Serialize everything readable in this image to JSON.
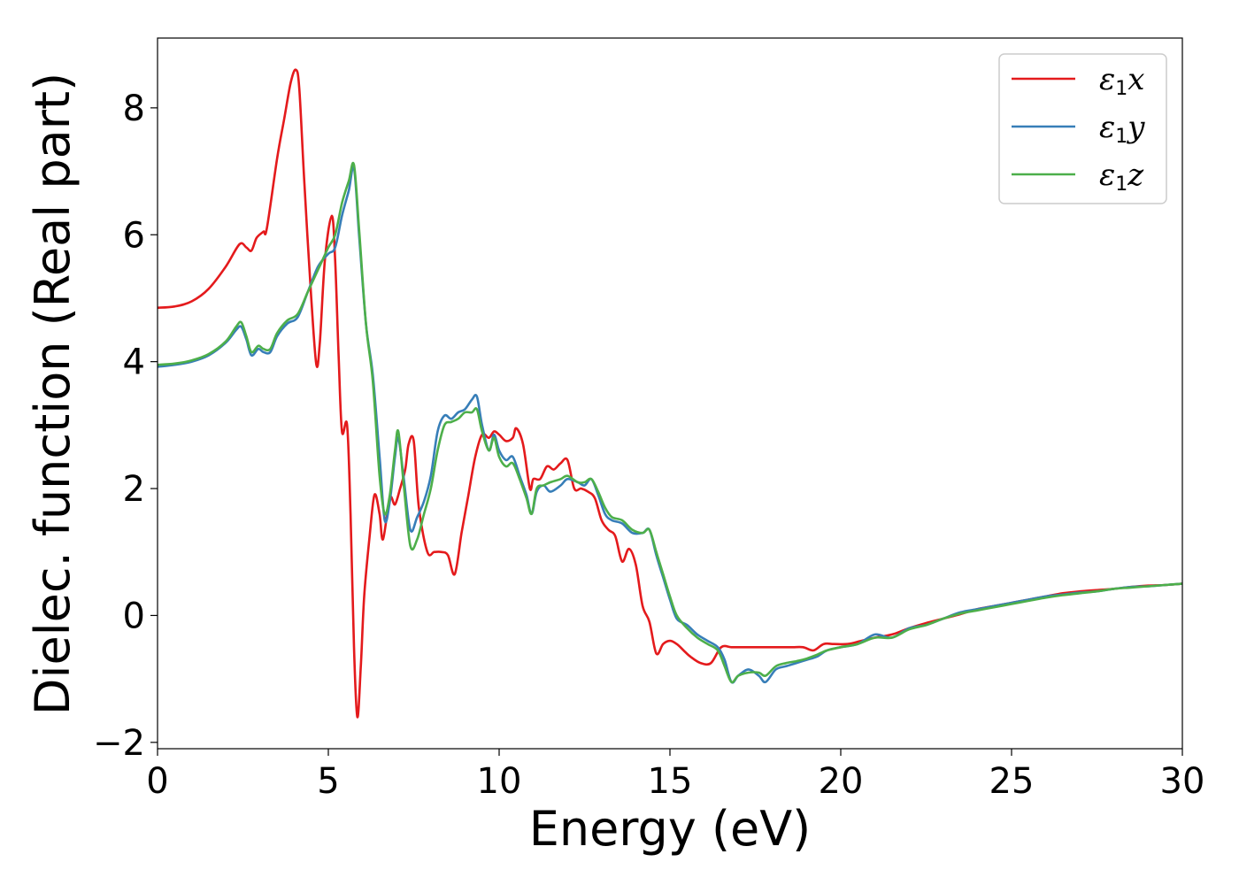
{
  "chart_data": {
    "type": "line",
    "xlabel": "Energy (eV)",
    "ylabel": "Dielec. function (Real part)",
    "xlim": [
      0,
      30
    ],
    "ylim": [
      -2.1,
      9.1
    ],
    "xticks": [
      0,
      5,
      10,
      15,
      20,
      25,
      30
    ],
    "xtick_labels": [
      "0",
      "5",
      "10",
      "15",
      "20",
      "25",
      "30"
    ],
    "yticks": [
      -2,
      0,
      2,
      4,
      6,
      8
    ],
    "ytick_labels": [
      "−2",
      "0",
      "2",
      "4",
      "6",
      "8"
    ],
    "grid": false,
    "legend_position": "top-right",
    "series": [
      {
        "legend": {
          "base": "ε",
          "sub": "1",
          "suffix": "x"
        },
        "color": "#e41a1c",
        "x": [
          0,
          0.5,
          1.0,
          1.5,
          2.0,
          2.4,
          2.6,
          2.75,
          2.9,
          3.1,
          3.2,
          3.5,
          3.7,
          3.9,
          4.05,
          4.15,
          4.3,
          4.5,
          4.65,
          4.75,
          4.9,
          5.1,
          5.2,
          5.3,
          5.4,
          5.55,
          5.65,
          5.75,
          5.85,
          5.95,
          6.05,
          6.2,
          6.35,
          6.5,
          6.6,
          6.8,
          6.95,
          7.1,
          7.25,
          7.35,
          7.5,
          7.65,
          7.9,
          8.1,
          8.3,
          8.5,
          8.7,
          8.9,
          9.1,
          9.3,
          9.5,
          9.7,
          9.85,
          10.0,
          10.2,
          10.4,
          10.5,
          10.7,
          10.9,
          11.0,
          11.2,
          11.4,
          11.6,
          11.8,
          12.0,
          12.2,
          12.4,
          12.6,
          12.8,
          13.0,
          13.2,
          13.4,
          13.6,
          13.8,
          14.0,
          14.2,
          14.4,
          14.6,
          14.8,
          15.0,
          15.2,
          15.4,
          15.6,
          15.9,
          16.2,
          16.5,
          16.8,
          17.1,
          17.4,
          17.7,
          18.0,
          18.3,
          18.6,
          18.9,
          19.2,
          19.5,
          19.8,
          20.2,
          20.6,
          21.0,
          21.5,
          22.0,
          22.5,
          23.0,
          23.5,
          24.0,
          24.5,
          25.0,
          25.5,
          26.0,
          26.5,
          27.0,
          27.5,
          28.0,
          28.5,
          29.0,
          29.5,
          30.0
        ],
        "y": [
          4.85,
          4.87,
          4.95,
          5.15,
          5.5,
          5.85,
          5.8,
          5.75,
          5.95,
          6.05,
          6.1,
          7.2,
          7.8,
          8.4,
          8.6,
          8.3,
          6.8,
          5.0,
          3.95,
          4.3,
          5.6,
          6.3,
          5.6,
          4.1,
          2.9,
          3.0,
          1.6,
          -0.5,
          -1.6,
          -0.8,
          0.3,
          1.2,
          1.9,
          1.6,
          1.2,
          1.85,
          1.75,
          2.0,
          2.3,
          2.7,
          2.75,
          1.7,
          1.0,
          1.0,
          1.0,
          0.95,
          0.65,
          1.3,
          1.9,
          2.5,
          2.85,
          2.8,
          2.9,
          2.85,
          2.75,
          2.8,
          2.95,
          2.7,
          2.0,
          2.15,
          2.15,
          2.35,
          2.3,
          2.4,
          2.45,
          2.0,
          2.0,
          1.95,
          1.85,
          1.5,
          1.35,
          1.25,
          0.85,
          1.05,
          0.8,
          0.15,
          -0.1,
          -0.6,
          -0.45,
          -0.4,
          -0.45,
          -0.55,
          -0.65,
          -0.75,
          -0.75,
          -0.5,
          -0.5,
          -0.5,
          -0.5,
          -0.5,
          -0.5,
          -0.5,
          -0.5,
          -0.5,
          -0.55,
          -0.45,
          -0.45,
          -0.45,
          -0.4,
          -0.35,
          -0.3,
          -0.2,
          -0.12,
          -0.05,
          0.02,
          0.1,
          0.15,
          0.2,
          0.25,
          0.3,
          0.35,
          0.38,
          0.4,
          0.42,
          0.45,
          0.47,
          0.48,
          0.5
        ]
      },
      {
        "legend": {
          "base": "ε",
          "sub": "1",
          "suffix": "y"
        },
        "color": "#377eb8",
        "x": [
          0,
          0.5,
          1.0,
          1.5,
          2.0,
          2.3,
          2.45,
          2.6,
          2.75,
          2.95,
          3.1,
          3.3,
          3.5,
          3.8,
          4.1,
          4.4,
          4.7,
          5.0,
          5.2,
          5.4,
          5.6,
          5.75,
          5.9,
          6.1,
          6.3,
          6.5,
          6.65,
          6.8,
          6.95,
          7.05,
          7.2,
          7.4,
          7.6,
          7.8,
          8.0,
          8.2,
          8.4,
          8.6,
          8.8,
          9.0,
          9.2,
          9.35,
          9.5,
          9.7,
          9.85,
          10.0,
          10.2,
          10.4,
          10.6,
          10.8,
          10.95,
          11.1,
          11.3,
          11.5,
          11.8,
          12.0,
          12.3,
          12.5,
          12.7,
          12.9,
          13.1,
          13.3,
          13.6,
          13.9,
          14.2,
          14.4,
          14.6,
          14.8,
          15.0,
          15.2,
          15.5,
          15.8,
          16.1,
          16.4,
          16.6,
          16.8,
          17.0,
          17.3,
          17.6,
          17.8,
          18.1,
          18.4,
          18.7,
          19.0,
          19.3,
          19.6,
          20.0,
          20.5,
          21.0,
          21.5,
          22.0,
          22.5,
          23.0,
          23.5,
          24.0,
          24.5,
          25.0,
          25.5,
          26.0,
          26.5,
          27.0,
          27.5,
          28.0,
          28.5,
          29.0,
          29.5,
          30.0
        ],
        "y": [
          3.92,
          3.95,
          4.0,
          4.1,
          4.3,
          4.5,
          4.55,
          4.35,
          4.1,
          4.2,
          4.15,
          4.15,
          4.4,
          4.6,
          4.7,
          5.1,
          5.5,
          5.7,
          5.8,
          6.3,
          6.7,
          7.05,
          6.0,
          4.6,
          3.8,
          2.5,
          1.5,
          1.8,
          2.5,
          2.8,
          2.2,
          1.35,
          1.55,
          1.8,
          2.2,
          2.9,
          3.15,
          3.1,
          3.2,
          3.25,
          3.4,
          3.45,
          3.0,
          2.6,
          2.85,
          2.6,
          2.45,
          2.5,
          2.2,
          1.9,
          1.6,
          1.95,
          2.05,
          1.95,
          2.05,
          2.15,
          2.1,
          2.05,
          2.15,
          1.9,
          1.6,
          1.5,
          1.45,
          1.3,
          1.3,
          1.35,
          0.95,
          0.6,
          0.25,
          -0.05,
          -0.15,
          -0.3,
          -0.4,
          -0.5,
          -0.7,
          -1.05,
          -0.95,
          -0.85,
          -0.95,
          -1.05,
          -0.85,
          -0.8,
          -0.75,
          -0.7,
          -0.65,
          -0.55,
          -0.5,
          -0.45,
          -0.3,
          -0.35,
          -0.2,
          -0.15,
          -0.05,
          0.05,
          0.1,
          0.15,
          0.2,
          0.25,
          0.3,
          0.33,
          0.36,
          0.38,
          0.42,
          0.45,
          0.46,
          0.48,
          0.5
        ]
      },
      {
        "legend": {
          "base": "ε",
          "sub": "1",
          "suffix": "z"
        },
        "color": "#4daf4a",
        "x": [
          0,
          0.5,
          1.0,
          1.5,
          2.0,
          2.3,
          2.45,
          2.6,
          2.75,
          2.95,
          3.1,
          3.3,
          3.5,
          3.8,
          4.1,
          4.4,
          4.7,
          5.0,
          5.2,
          5.4,
          5.6,
          5.75,
          5.9,
          6.1,
          6.3,
          6.5,
          6.65,
          6.8,
          6.95,
          7.05,
          7.2,
          7.4,
          7.6,
          7.8,
          8.0,
          8.2,
          8.4,
          8.6,
          8.8,
          9.0,
          9.2,
          9.35,
          9.5,
          9.7,
          9.85,
          10.0,
          10.2,
          10.4,
          10.6,
          10.8,
          10.95,
          11.1,
          11.3,
          11.5,
          11.8,
          12.0,
          12.3,
          12.5,
          12.7,
          12.9,
          13.1,
          13.3,
          13.6,
          13.9,
          14.2,
          14.4,
          14.6,
          14.8,
          15.0,
          15.2,
          15.5,
          15.8,
          16.1,
          16.4,
          16.6,
          16.8,
          17.0,
          17.3,
          17.6,
          17.8,
          18.1,
          18.4,
          18.7,
          19.0,
          19.3,
          19.6,
          20.0,
          20.5,
          21.0,
          21.5,
          22.0,
          22.5,
          23.0,
          23.5,
          24.0,
          24.5,
          25.0,
          25.5,
          26.0,
          26.5,
          27.0,
          27.5,
          28.0,
          28.5,
          29.0,
          29.5,
          30.0
        ],
        "y": [
          3.95,
          3.97,
          4.02,
          4.12,
          4.32,
          4.55,
          4.62,
          4.4,
          4.15,
          4.25,
          4.2,
          4.2,
          4.45,
          4.65,
          4.75,
          5.1,
          5.45,
          5.8,
          6.0,
          6.5,
          6.85,
          7.1,
          6.1,
          4.6,
          3.7,
          2.2,
          1.6,
          1.9,
          2.6,
          2.9,
          2.1,
          1.1,
          1.2,
          1.6,
          2.0,
          2.6,
          3.0,
          3.05,
          3.1,
          3.2,
          3.2,
          3.25,
          2.9,
          2.6,
          2.8,
          2.5,
          2.35,
          2.4,
          2.15,
          1.85,
          1.6,
          2.0,
          2.05,
          2.1,
          2.15,
          2.2,
          2.1,
          2.1,
          2.15,
          1.95,
          1.7,
          1.55,
          1.5,
          1.35,
          1.3,
          1.35,
          1.0,
          0.65,
          0.3,
          0.0,
          -0.2,
          -0.35,
          -0.45,
          -0.55,
          -0.8,
          -1.05,
          -0.95,
          -0.9,
          -0.9,
          -0.95,
          -0.8,
          -0.75,
          -0.72,
          -0.68,
          -0.62,
          -0.55,
          -0.5,
          -0.45,
          -0.35,
          -0.35,
          -0.22,
          -0.15,
          -0.05,
          0.03,
          0.08,
          0.13,
          0.18,
          0.23,
          0.28,
          0.32,
          0.35,
          0.38,
          0.42,
          0.44,
          0.46,
          0.48,
          0.5
        ]
      }
    ]
  }
}
